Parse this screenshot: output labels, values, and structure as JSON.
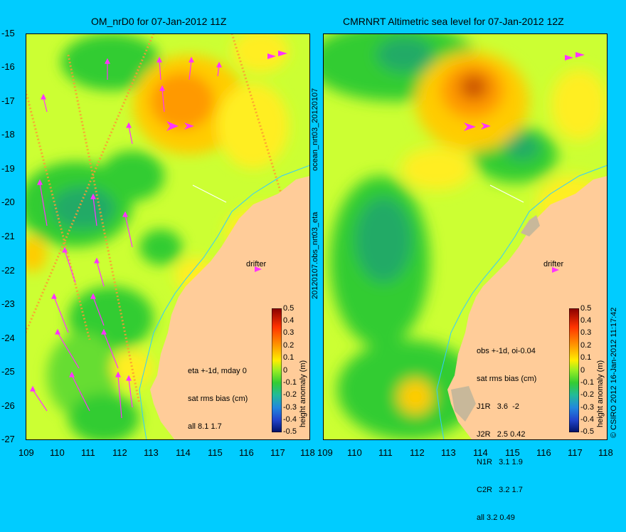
{
  "left": {
    "title": "OM_nrD0 for 07-Jan-2012 11Z",
    "info": [
      "eta +-1d, mday 0",
      "sat rms bias (cm)",
      "all 8.1 1.7"
    ],
    "drifter_label": "drifter"
  },
  "right": {
    "title": "CMRNRT Altimetric sea level  for 07-Jan-2012 12Z",
    "info": [
      "obs +-1d, oi-0.04",
      "sat rms bias (cm)",
      "J1R   3.6  -2",
      "J2R   2.5 0.42",
      "N1R   3.1 1.9",
      "C2R   3.2 1.7",
      "all 3.2 0.49"
    ],
    "drifter_label": "drifter"
  },
  "x_ticks": [
    "109",
    "110",
    "111",
    "112",
    "113",
    "114",
    "115",
    "116",
    "117",
    "118"
  ],
  "y_ticks": [
    "-15",
    "-16",
    "-17",
    "-18",
    "-19",
    "-20",
    "-21",
    "-22",
    "-23",
    "-24",
    "-25",
    "-26",
    "-27"
  ],
  "colorbar": {
    "label": "height anomaly (m)",
    "ticks": [
      "0.5",
      "0.4",
      "0.3",
      "0.2",
      "0.1",
      "0",
      "-0.1",
      "-0.2",
      "-0.3",
      "-0.4",
      "-0.5"
    ]
  },
  "side_labels": {
    "top": "ocean_nrt03_20120107",
    "bottom": "20120107.obs_nrt03_eta",
    "credit": "© CSIRO 2012   16-Jan-2012 11:17:42"
  },
  "colors": {
    "background": "#00ccff",
    "land": "#ffcc99",
    "arrow": "#ff33ff",
    "green": "#33cc33",
    "yellow": "#ccff33",
    "orange": "#ff9900"
  }
}
